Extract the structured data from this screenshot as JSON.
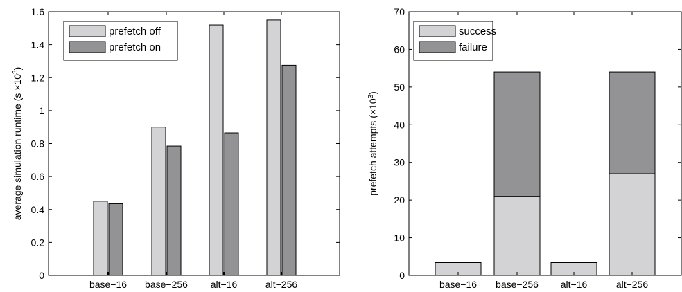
{
  "chart_data": [
    {
      "type": "bar",
      "categories": [
        "base−16",
        "base−256",
        "alt−16",
        "alt−256"
      ],
      "series": [
        {
          "name": "prefetch off",
          "values": [
            0.45,
            0.9,
            1.52,
            1.55
          ],
          "color": "#d3d3d5"
        },
        {
          "name": "prefetch on",
          "values": [
            0.435,
            0.785,
            0.865,
            1.275
          ],
          "color": "#939396"
        }
      ],
      "ylim": [
        0,
        1.6
      ],
      "yticks": [
        "0",
        "0.2",
        "0.4",
        "0.6",
        "0.8",
        "1",
        "1.2",
        "1.4",
        "1.6"
      ],
      "ytick_values": [
        0,
        0.2,
        0.4,
        0.6,
        0.8,
        1.0,
        1.2,
        1.4,
        1.6
      ],
      "ylabel_main": "average simulation runtime (s ×10",
      "ylabel_sup": "3",
      "ylabel_end": ")",
      "legend_position": "top-left",
      "grid": false
    },
    {
      "type": "bar",
      "stacked": true,
      "categories": [
        "base−16",
        "base−256",
        "alt−16",
        "alt−256"
      ],
      "series": [
        {
          "name": "success",
          "values": [
            3.4,
            21,
            3.4,
            27
          ],
          "color": "#d3d3d5"
        },
        {
          "name": "failure",
          "values": [
            0,
            33,
            0,
            27
          ],
          "color": "#939396"
        }
      ],
      "ylim": [
        0,
        70
      ],
      "yticks": [
        "0",
        "10",
        "20",
        "30",
        "40",
        "50",
        "60",
        "70"
      ],
      "ytick_values": [
        0,
        10,
        20,
        30,
        40,
        50,
        60,
        70
      ],
      "ylabel_main": "prefetch attempts (×10",
      "ylabel_sup": "3",
      "ylabel_end": ")",
      "legend_position": "top-left",
      "grid": false
    }
  ]
}
